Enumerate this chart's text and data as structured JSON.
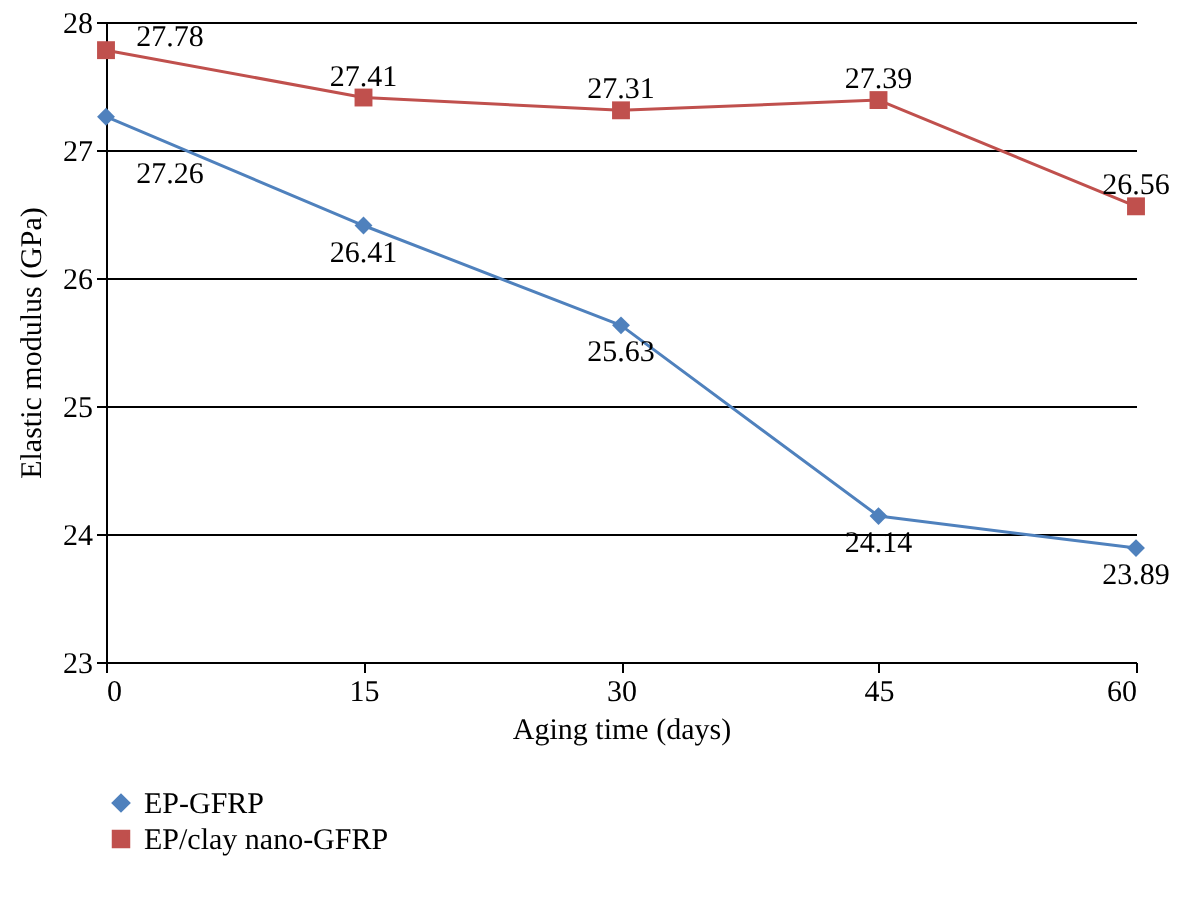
{
  "chart_data": {
    "type": "line",
    "xlabel": "Aging time (days)",
    "ylabel": "Elastic modulus (GPa)",
    "x": [
      0,
      15,
      30,
      45,
      60
    ],
    "series": [
      {
        "name": "EP-GFRP",
        "color": "#4f81bd",
        "marker": "diamond",
        "values": [
          27.26,
          26.41,
          25.63,
          24.14,
          23.89
        ]
      },
      {
        "name": "EP/clay nano-GFRP",
        "color": "#c0504d",
        "marker": "square",
        "values": [
          27.78,
          27.41,
          27.31,
          27.39,
          26.56
        ]
      }
    ],
    "xlim": [
      0,
      60
    ],
    "xticks": [
      0,
      15,
      30,
      45,
      60
    ],
    "ylim": [
      23,
      28
    ],
    "yticks": [
      23,
      24,
      25,
      26,
      27,
      28
    ],
    "grid": "y",
    "legend": "bottom left",
    "data_labels": true
  }
}
